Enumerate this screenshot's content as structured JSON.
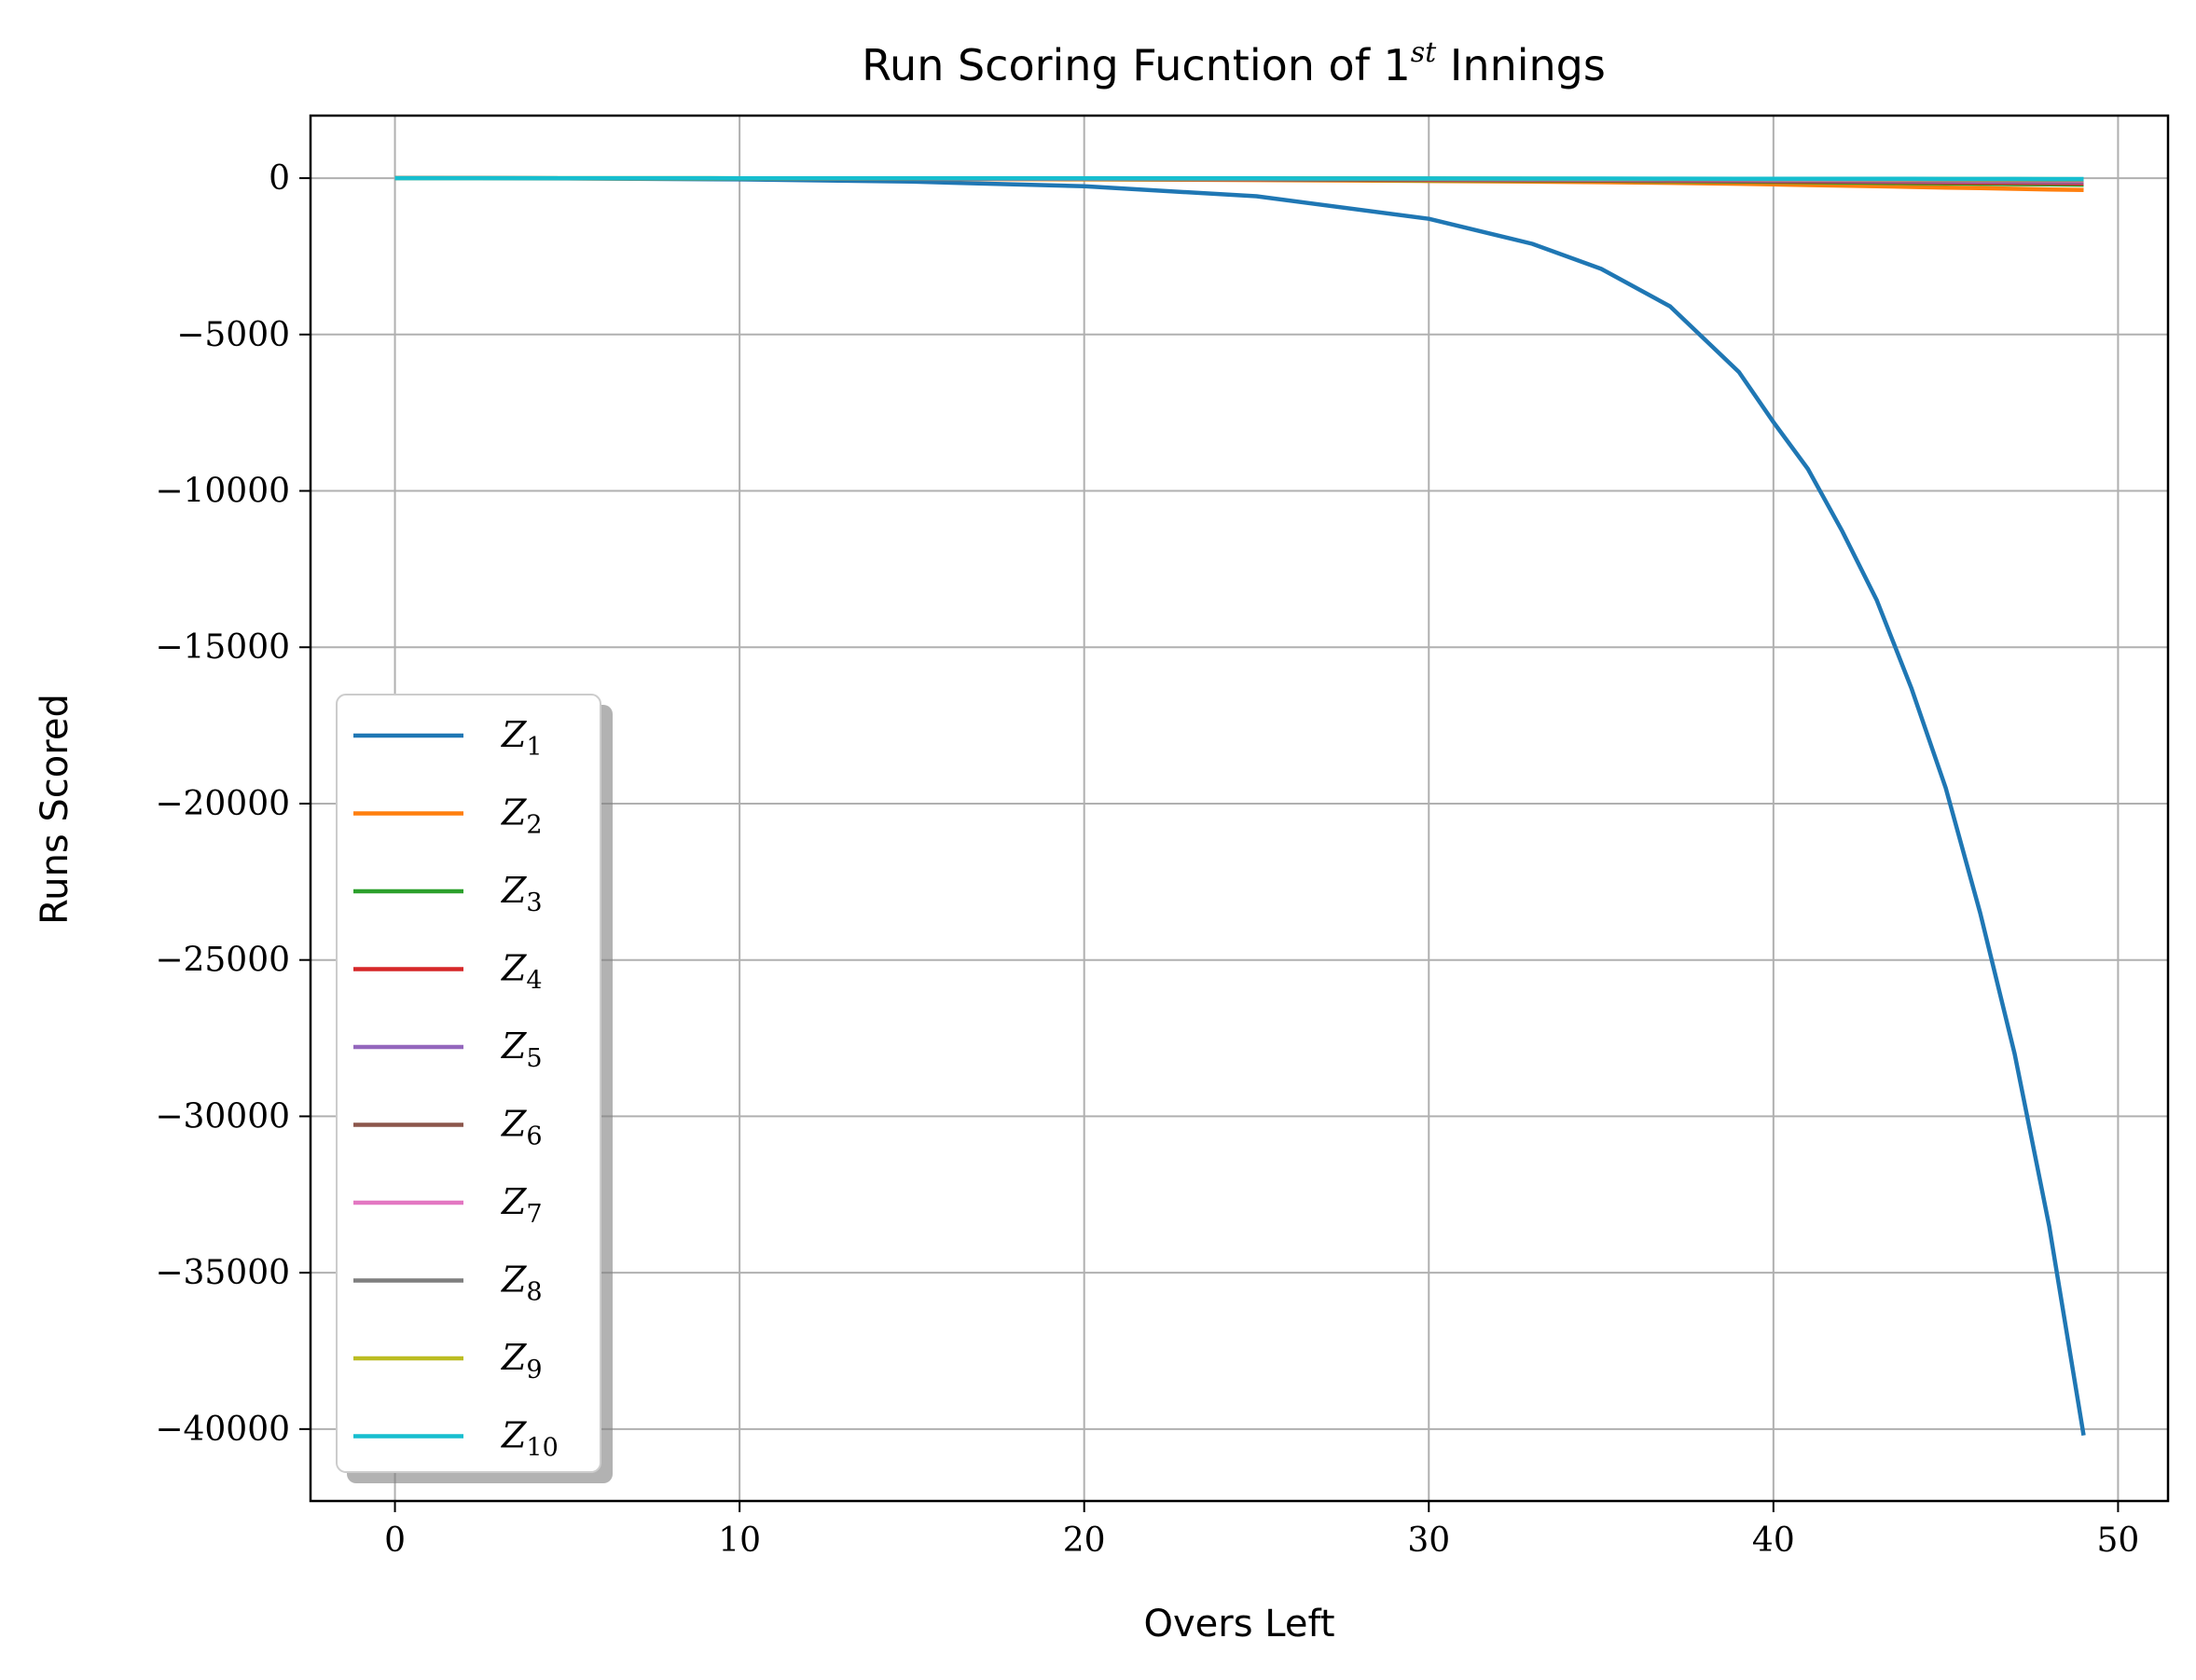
{
  "chart_data": {
    "type": "line",
    "title_main": "Run Scoring Fucntion of 1",
    "title_sup": "st",
    "title_end": " Innings",
    "xlabel": "Overs Left",
    "ylabel": "Runs Scored",
    "xlim": [
      -2.45,
      51.45
    ],
    "ylim": [
      -42300,
      2000
    ],
    "xticks": [
      0,
      10,
      20,
      30,
      40,
      50
    ],
    "yticks": [
      0,
      -5000,
      -10000,
      -15000,
      -20000,
      -25000,
      -30000,
      -35000,
      -40000
    ],
    "ytick_labels": [
      "0",
      "−5000",
      "−10000",
      "−15000",
      "−20000",
      "−25000",
      "−30000",
      "−35000",
      "−40000"
    ],
    "grid": true,
    "legend_position": "lower-left",
    "legend_style": "shadow",
    "x": [
      0,
      5,
      10,
      15,
      20,
      25,
      30,
      33,
      35,
      37,
      39,
      40,
      41,
      42,
      43,
      44,
      45,
      46,
      47,
      48,
      49
    ],
    "series": [
      {
        "name": "Z",
        "sub": "1",
        "color": "#1f77b4",
        "values": [
          0,
          -10,
          -40,
          -110,
          -260,
          -580,
          -1300,
          -2100,
          -2900,
          -4100,
          -6200,
          -7800,
          -9300,
          -11300,
          -13500,
          -16300,
          -19500,
          -23500,
          -28000,
          -33500,
          -40200
        ]
      },
      {
        "name": "Z",
        "sub": "2",
        "color": "#ff7f0e",
        "values": [
          0,
          -5,
          -10,
          -20,
          -40,
          -60,
          -90,
          -110,
          -130,
          -150,
          -180,
          -200,
          -220,
          -240,
          -260,
          -280,
          -300,
          -320,
          -340,
          -360,
          -380
        ]
      },
      {
        "name": "Z",
        "sub": "3",
        "color": "#2ca02c",
        "values": [
          0,
          -4,
          -8,
          -14,
          -25,
          -40,
          -60,
          -72,
          -82,
          -95,
          -110,
          -120,
          -130,
          -140,
          -150,
          -160,
          -170,
          -180,
          -190,
          -200,
          -210
        ]
      },
      {
        "name": "Z",
        "sub": "4",
        "color": "#d62728",
        "values": [
          0,
          -3,
          -6,
          -12,
          -20,
          -32,
          -48,
          -58,
          -66,
          -76,
          -88,
          -95,
          -102,
          -110,
          -118,
          -126,
          -134,
          -142,
          -150,
          -158,
          -166
        ]
      },
      {
        "name": "Z",
        "sub": "5",
        "color": "#9467bd",
        "values": [
          0,
          -3,
          -6,
          -10,
          -16,
          -26,
          -38,
          -46,
          -52,
          -60,
          -70,
          -75,
          -80,
          -86,
          -92,
          -98,
          -104,
          -110,
          -116,
          -122,
          -128
        ]
      },
      {
        "name": "Z",
        "sub": "6",
        "color": "#8c564b",
        "values": [
          0,
          -2,
          -5,
          -8,
          -13,
          -20,
          -30,
          -36,
          -41,
          -47,
          -54,
          -58,
          -62,
          -66,
          -70,
          -74,
          -78,
          -82,
          -86,
          -90,
          -94
        ]
      },
      {
        "name": "Z",
        "sub": "7",
        "color": "#e377c2",
        "values": [
          0,
          -2,
          -4,
          -7,
          -11,
          -16,
          -23,
          -28,
          -32,
          -36,
          -41,
          -44,
          -47,
          -50,
          -53,
          -56,
          -59,
          -62,
          -65,
          -68,
          -71
        ]
      },
      {
        "name": "Z",
        "sub": "8",
        "color": "#7f7f7f",
        "values": [
          0,
          -2,
          -3,
          -5,
          -8,
          -12,
          -17,
          -20,
          -23,
          -26,
          -30,
          -32,
          -34,
          -36,
          -38,
          -40,
          -42,
          -44,
          -46,
          -48,
          -50
        ]
      },
      {
        "name": "Z",
        "sub": "9",
        "color": "#bcbd22",
        "values": [
          0,
          -1,
          -2,
          -4,
          -6,
          -9,
          -13,
          -15,
          -17,
          -19,
          -22,
          -23,
          -24,
          -25,
          -26,
          -27,
          -28,
          -29,
          -30,
          -31,
          -32
        ]
      },
      {
        "name": "Z",
        "sub": "10",
        "color": "#17becf",
        "values": [
          0,
          -1,
          -2,
          -3,
          -5,
          -7,
          -10,
          -12,
          -13,
          -15,
          -17,
          -18,
          -19,
          -20,
          -21,
          -22,
          -23,
          -24,
          -25,
          -26,
          -27
        ]
      }
    ]
  }
}
